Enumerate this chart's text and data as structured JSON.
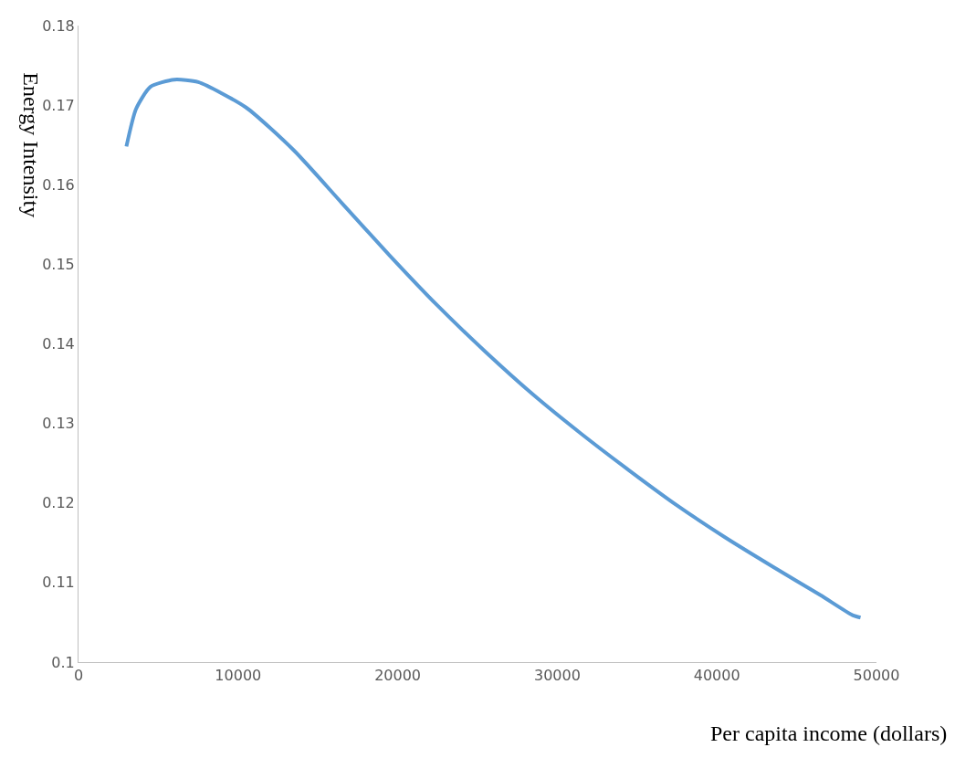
{
  "chart_data": {
    "type": "line",
    "xlabel": "Per capita income (dollars)",
    "ylabel": "Energy Intensity",
    "xlim": [
      0,
      50000
    ],
    "xticks": [
      0,
      10000,
      20000,
      30000,
      40000,
      50000
    ],
    "ylim": [
      0.1,
      0.18
    ],
    "yticks": [
      0.1,
      0.11,
      0.12,
      0.13,
      0.14,
      0.15,
      0.16,
      0.17,
      0.18
    ],
    "marker": "none",
    "line_style": "solid",
    "series": [
      {
        "color": "#5b9bd5",
        "x": [
          3000,
          3600,
          4500,
          6000,
          7500,
          10500,
          13500,
          16500,
          19500,
          22500,
          25500,
          28500,
          31500,
          34500,
          37500,
          40500,
          43500,
          46500,
          48500,
          49000
        ],
        "values": [
          0.1648,
          0.1695,
          0.1723,
          0.1732,
          0.1729,
          0.1697,
          0.1643,
          0.1577,
          0.1511,
          0.1448,
          0.139,
          0.1336,
          0.1287,
          0.1241,
          0.1197,
          0.1157,
          0.112,
          0.1084,
          0.1059,
          0.1056
        ]
      }
    ]
  }
}
